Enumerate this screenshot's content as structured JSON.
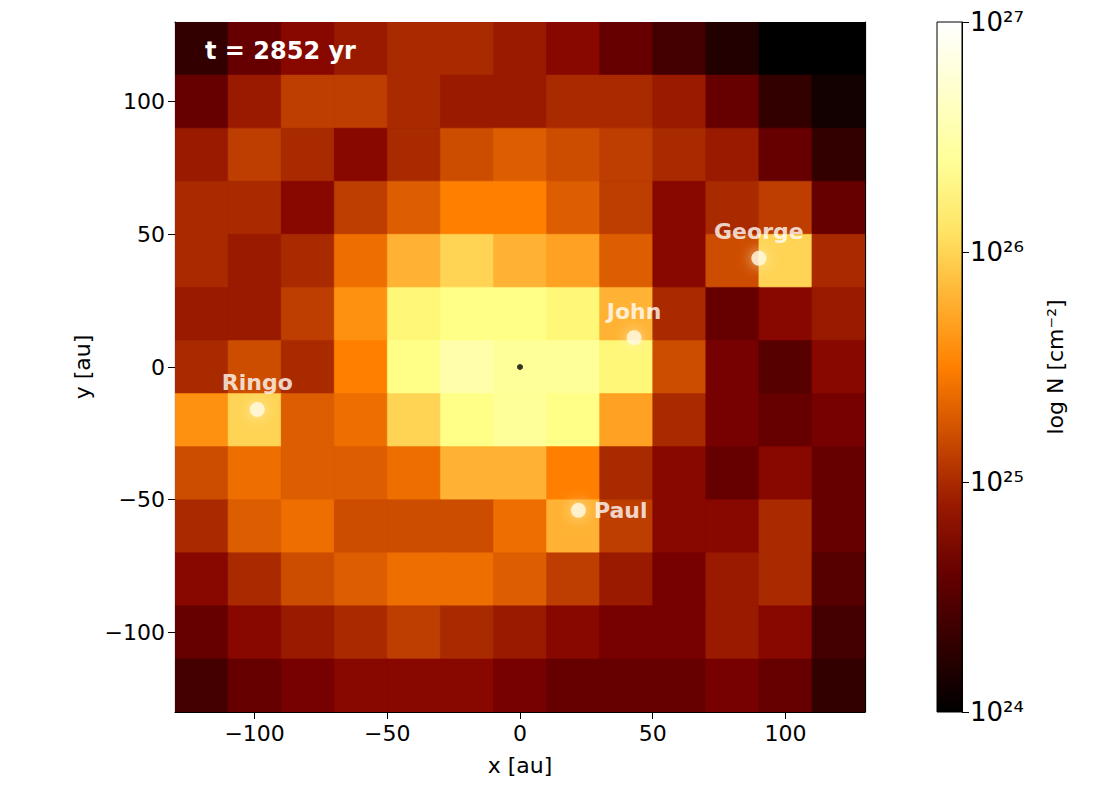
{
  "chart_data": {
    "type": "heatmap",
    "title": "t = 2852 yr",
    "x_label": "x [au]",
    "y_label": "y [au]",
    "xlim": [
      -130,
      130
    ],
    "ylim": [
      -130,
      130
    ],
    "xticks": [
      {
        "value": -100,
        "label": "−100"
      },
      {
        "value": -50,
        "label": "−50"
      },
      0,
      50,
      100
    ],
    "yticks": [
      {
        "value": -100,
        "label": "−100"
      },
      {
        "value": -50,
        "label": "−50"
      },
      0,
      50,
      100
    ],
    "colorbar": {
      "label": "log N [cm⁻²]",
      "log": true,
      "range": [
        1e+24,
        1e+27
      ],
      "ticks": [
        {
          "value": 1e+24,
          "label": "10²⁴"
        },
        {
          "value": 1e+25,
          "label": "10²⁵"
        },
        {
          "value": 1e+26,
          "label": "10²⁶"
        },
        {
          "value": 1e+27,
          "label": "10²⁷"
        }
      ]
    },
    "cells": {
      "x": [
        -120,
        -100,
        -80,
        -60,
        -40,
        -20,
        0,
        20,
        40,
        60,
        80,
        100,
        120
      ],
      "y": [
        120,
        100,
        80,
        60,
        40,
        20,
        0,
        -20,
        -40,
        -60,
        -80,
        -100,
        -120
      ],
      "N": [
        [
          2e+24,
          4e+24,
          6.3e+24,
          8e+24,
          1e+25,
          1e+25,
          8e+24,
          6.3e+24,
          4e+24,
          2.5e+24,
          1.6e+24,
          1e+24,
          1e+24
        ],
        [
          4e+24,
          8e+24,
          1.3e+25,
          1.3e+25,
          1e+25,
          8e+24,
          8e+24,
          1e+25,
          1e+25,
          8e+24,
          4e+24,
          2e+24,
          1.3e+24
        ],
        [
          8e+24,
          1.3e+25,
          1e+25,
          6.3e+24,
          1e+25,
          1.6e+25,
          2e+25,
          1.6e+25,
          1.3e+25,
          1e+25,
          8e+24,
          4e+24,
          2e+24
        ],
        [
          1e+25,
          1e+25,
          6.3e+24,
          1.3e+25,
          2e+25,
          3.2e+25,
          3.2e+25,
          2e+25,
          1.3e+25,
          6.3e+24,
          1e+25,
          1.3e+25,
          4e+24
        ],
        [
          1e+25,
          8e+24,
          1e+25,
          2.5e+25,
          6.3e+25,
          1e+26,
          6.3e+25,
          5e+25,
          2e+25,
          6.3e+24,
          1.6e+25,
          1e+26,
          1e+25
        ],
        [
          8e+24,
          8e+24,
          1.3e+25,
          4e+25,
          1.6e+26,
          2e+26,
          2e+26,
          1.6e+26,
          6.3e+25,
          1e+25,
          4e+24,
          6.3e+24,
          8e+24
        ],
        [
          1e+25,
          1.6e+25,
          1e+25,
          3.2e+25,
          2e+26,
          3.2e+26,
          2.5e+26,
          2.5e+26,
          1.6e+26,
          1.6e+25,
          5e+24,
          3.2e+24,
          6.3e+24
        ],
        [
          4e+25,
          1e+26,
          2e+25,
          2.5e+25,
          1e+26,
          2e+26,
          2.5e+26,
          2e+26,
          5e+25,
          1e+25,
          5e+24,
          4e+24,
          5e+24
        ],
        [
          1.6e+25,
          2.5e+25,
          2e+25,
          2e+25,
          2.5e+25,
          6.3e+25,
          6.3e+25,
          3.2e+25,
          1e+25,
          6.3e+24,
          4e+24,
          6.3e+24,
          4e+24
        ],
        [
          1e+25,
          2e+25,
          2.5e+25,
          1.6e+25,
          1.6e+25,
          1.6e+25,
          2.5e+25,
          6.3e+25,
          1.3e+25,
          6.3e+24,
          6.3e+24,
          1e+25,
          4e+24
        ],
        [
          6.3e+24,
          1e+25,
          1.6e+25,
          2e+25,
          2.5e+25,
          2.5e+25,
          2e+25,
          1.3e+25,
          8e+24,
          5e+24,
          8e+24,
          1e+25,
          3.2e+24
        ],
        [
          4e+24,
          6.3e+24,
          8e+24,
          1e+25,
          1.3e+25,
          1e+25,
          8e+24,
          6.3e+24,
          5e+24,
          5e+24,
          8e+24,
          6.3e+24,
          2.5e+24
        ],
        [
          2.5e+24,
          4e+24,
          5e+24,
          6.3e+24,
          6.3e+24,
          6.3e+24,
          5e+24,
          4e+24,
          4e+24,
          4e+24,
          5e+24,
          4e+24,
          2e+24
        ]
      ]
    },
    "points": [
      {
        "name": "John",
        "x": 43,
        "y": 11
      },
      {
        "name": "George",
        "x": 90,
        "y": 41
      },
      {
        "name": "Ringo",
        "x": -99,
        "y": -16
      },
      {
        "name": "Paul",
        "x": 22,
        "y": -54
      }
    ],
    "star": {
      "x": 0,
      "y": 0
    }
  }
}
